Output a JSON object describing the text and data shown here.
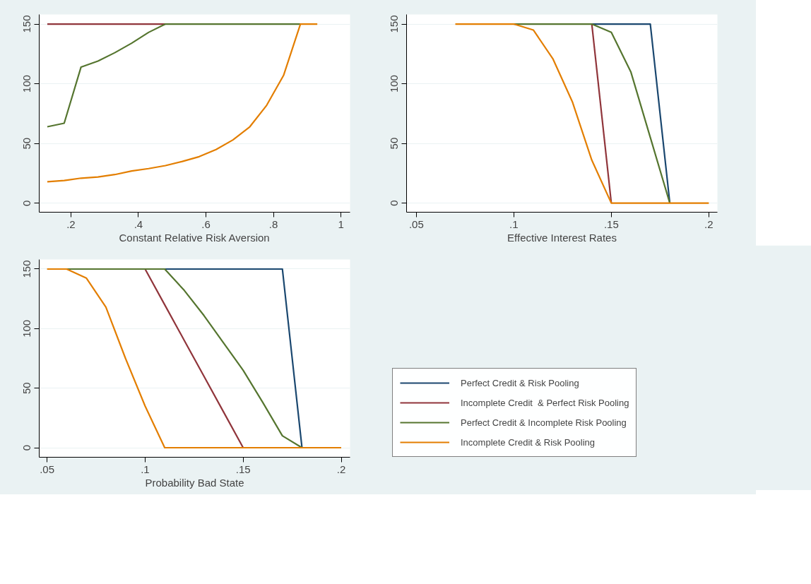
{
  "chart_data": [
    {
      "type": "line",
      "xlabel": "Constant Relative Risk Aversion",
      "xlim": [
        0.106,
        1.027
      ],
      "xticks": [
        {
          "value": 0.2,
          "label": ".2"
        },
        {
          "value": 0.4,
          "label": ".4"
        },
        {
          "value": 0.6,
          "label": ".6"
        },
        {
          "value": 0.8,
          "label": ".8"
        },
        1
      ],
      "ylim": [
        -7.5,
        158
      ],
      "yticks": [
        0,
        50,
        100,
        150
      ],
      "grid": "y",
      "legend": false,
      "line_style": "solid",
      "marker": "none",
      "series": [
        {
          "color": "#90353b",
          "x": [
            0.13,
            0.18,
            0.23,
            0.28,
            0.33,
            0.38,
            0.43,
            0.48
          ],
          "values": [
            150,
            150,
            150,
            150,
            150,
            150,
            150,
            150
          ]
        },
        {
          "color": "#55752f",
          "x": [
            0.13,
            0.18,
            0.23,
            0.28,
            0.33,
            0.38,
            0.43,
            0.48,
            0.53,
            0.58,
            0.63,
            0.68,
            0.73,
            0.78,
            0.83,
            0.88
          ],
          "values": [
            64,
            67,
            114,
            119,
            126,
            134,
            143,
            150,
            150,
            150,
            150,
            150,
            150,
            150,
            150,
            150
          ]
        },
        {
          "color": "#e37e00",
          "x": [
            0.13,
            0.18,
            0.23,
            0.28,
            0.33,
            0.38,
            0.43,
            0.48,
            0.53,
            0.58,
            0.63,
            0.68,
            0.73,
            0.78,
            0.83,
            0.88,
            0.93
          ],
          "values": [
            18,
            19,
            21,
            22,
            24,
            27,
            29,
            31.5,
            35,
            39,
            45,
            53,
            64,
            82,
            107,
            150,
            150
          ]
        }
      ]
    },
    {
      "type": "line",
      "xlabel": "Effective Interest Rates",
      "xlim": [
        0.045,
        0.2044
      ],
      "xticks": [
        {
          "value": 0.05,
          "label": ".05"
        },
        {
          "value": 0.1,
          "label": ".1"
        },
        {
          "value": 0.15,
          "label": ".15"
        },
        {
          "value": 0.2,
          "label": ".2"
        }
      ],
      "ylim": [
        -7.6,
        158
      ],
      "yticks": [
        0,
        50,
        100,
        150
      ],
      "grid": "y",
      "legend": false,
      "line_style": "solid",
      "marker": "none",
      "series": [
        {
          "color": "#1a476f",
          "x": [
            0.14,
            0.15,
            0.16,
            0.17,
            0.18
          ],
          "values": [
            150,
            150,
            150,
            150,
            0
          ]
        },
        {
          "color": "#90353b",
          "x": [
            0.14,
            0.15
          ],
          "values": [
            150,
            0
          ]
        },
        {
          "color": "#55752f",
          "x": [
            0.1,
            0.11,
            0.12,
            0.13,
            0.14,
            0.15,
            0.16,
            0.17,
            0.18
          ],
          "values": [
            150,
            150,
            150,
            150,
            150,
            143,
            110,
            55,
            0
          ]
        },
        {
          "color": "#e37e00",
          "x": [
            0.07,
            0.08,
            0.09,
            0.1,
            0.11,
            0.12,
            0.13,
            0.14,
            0.15,
            0.16,
            0.17,
            0.18,
            0.19,
            0.2
          ],
          "values": [
            150,
            150,
            150,
            150,
            145,
            121,
            85,
            36,
            0,
            0,
            0,
            0,
            0,
            0
          ]
        }
      ]
    },
    {
      "type": "line",
      "xlabel": "Probability Bad State",
      "xlim": [
        0.046,
        0.2045
      ],
      "xticks": [
        {
          "value": 0.05,
          "label": ".05"
        },
        {
          "value": 0.1,
          "label": ".1"
        },
        {
          "value": 0.15,
          "label": ".15"
        },
        {
          "value": 0.2,
          "label": ".2"
        }
      ],
      "ylim": [
        -8,
        158
      ],
      "yticks": [
        0,
        50,
        100,
        150
      ],
      "grid": "y",
      "legend": "right",
      "line_style": "solid",
      "marker": "none",
      "series": [
        {
          "name": "Perfect Credit & Risk Pooling",
          "color": "#1a476f",
          "x": [
            0.11,
            0.12,
            0.13,
            0.14,
            0.15,
            0.16,
            0.17,
            0.18
          ],
          "values": [
            150,
            150,
            150,
            150,
            150,
            150,
            150,
            0
          ]
        },
        {
          "name": "Incomplete Credit  & Perfect Risk Pooling",
          "color": "#90353b",
          "x": [
            0.1,
            0.11,
            0.12,
            0.13,
            0.14,
            0.15
          ],
          "values": [
            150,
            120,
            90,
            60,
            30,
            0
          ]
        },
        {
          "name": "Perfect Credit & Incomplete Risk Pooling",
          "color": "#55752f",
          "x": [
            0.06,
            0.07,
            0.08,
            0.09,
            0.1,
            0.11,
            0.12,
            0.13,
            0.14,
            0.15,
            0.16,
            0.17,
            0.18
          ],
          "values": [
            150,
            150,
            150,
            150,
            150,
            150,
            132,
            111,
            88,
            65,
            38,
            10,
            0
          ]
        },
        {
          "name": "Incomplete Credit & Risk Pooling",
          "color": "#e37e00",
          "x": [
            0.05,
            0.06,
            0.07,
            0.08,
            0.09,
            0.1,
            0.11,
            0.12,
            0.13,
            0.14,
            0.15,
            0.16,
            0.17,
            0.18,
            0.19,
            0.2
          ],
          "values": [
            150,
            150,
            142.5,
            118,
            75,
            35,
            0,
            0,
            0,
            0,
            0,
            0,
            0,
            0,
            0,
            0
          ]
        }
      ]
    }
  ]
}
